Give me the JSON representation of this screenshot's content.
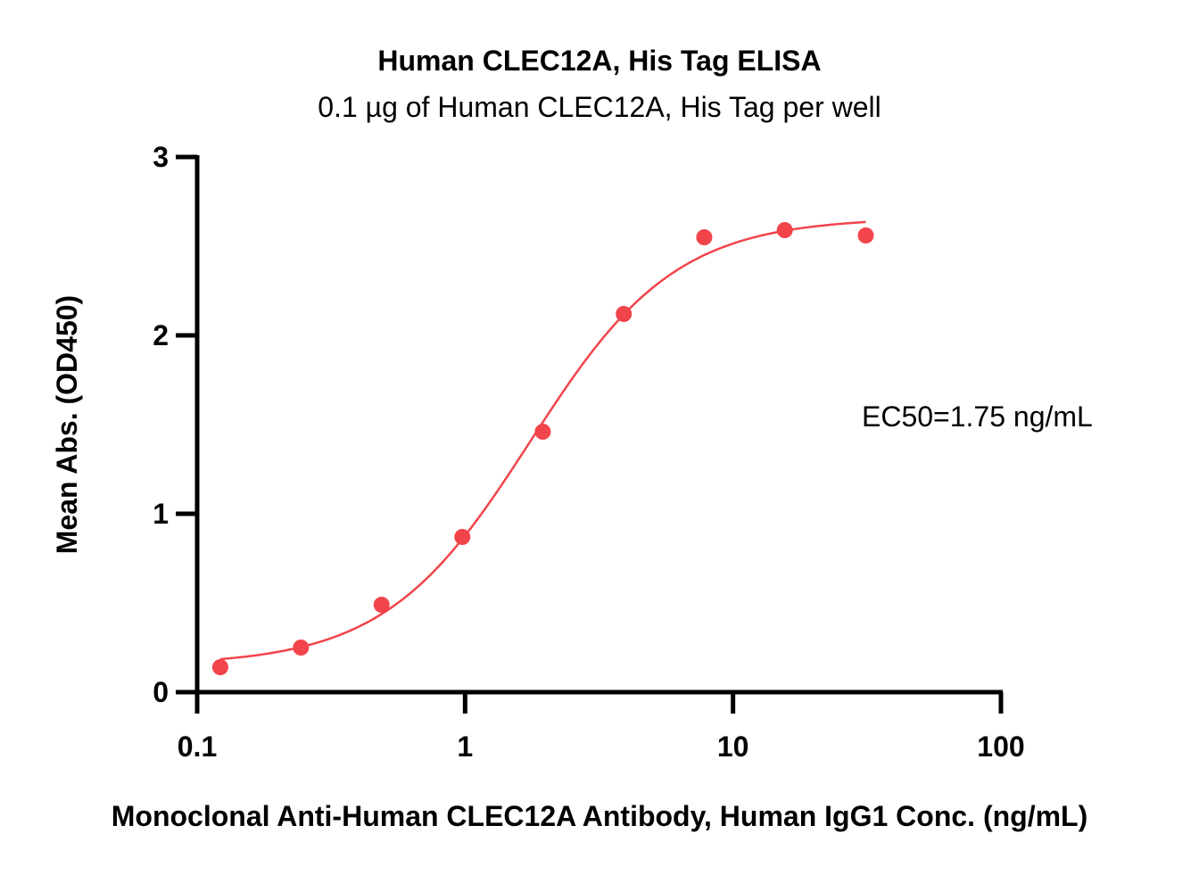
{
  "chart_data": {
    "type": "scatter",
    "title": "Human CLEC12A, His Tag ELISA",
    "subtitle": "0.1 µg of Human CLEC12A, His Tag per well",
    "xlabel": "Monoclonal Anti-Human CLEC12A Antibody, Human IgG1 Conc. (ng/mL)",
    "ylabel": "Mean Abs. (OD450)",
    "x_scale": "log",
    "xlim": [
      0.1,
      100
    ],
    "ylim": [
      0,
      3
    ],
    "x_ticks": [
      {
        "value": 0.1,
        "label": "0.1"
      },
      {
        "value": 1,
        "label": "1"
      },
      {
        "value": 10,
        "label": "10"
      },
      {
        "value": 100,
        "label": "100"
      }
    ],
    "y_ticks": [
      {
        "value": 0,
        "label": "0"
      },
      {
        "value": 1,
        "label": "1"
      },
      {
        "value": 2,
        "label": "2"
      },
      {
        "value": 3,
        "label": "3"
      }
    ],
    "grid": false,
    "series": [
      {
        "color": "#f2444b",
        "points": [
          {
            "x": 0.122,
            "y": 0.14
          },
          {
            "x": 0.244,
            "y": 0.25
          },
          {
            "x": 0.488,
            "y": 0.49
          },
          {
            "x": 0.977,
            "y": 0.87
          },
          {
            "x": 1.95,
            "y": 1.46
          },
          {
            "x": 3.91,
            "y": 2.12
          },
          {
            "x": 7.81,
            "y": 2.55
          },
          {
            "x": 15.6,
            "y": 2.59
          },
          {
            "x": 31.3,
            "y": 2.56
          }
        ],
        "fit": {
          "bottom": 0.15,
          "top": 2.66,
          "ec50": 1.75,
          "hill": 1.6
        }
      }
    ],
    "annotation": "EC50=1.75 ng/mL"
  }
}
